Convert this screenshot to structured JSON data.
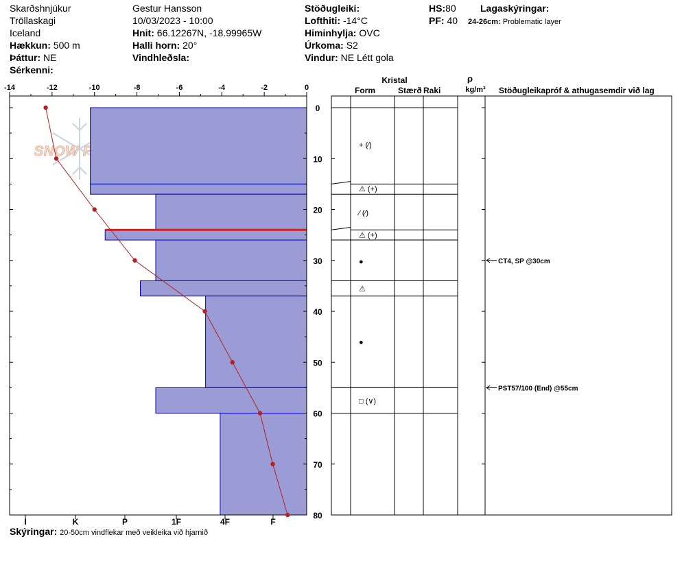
{
  "header": {
    "location": "Skarðshnjúkur",
    "region": "Tröllaskagi",
    "country": "Iceland",
    "elevation_label": "Hækkun:",
    "elevation_value": "500 m",
    "aspect_label": "Þáttur:",
    "aspect_value": "NE",
    "features_label": "Sérkenni:",
    "observer": "Gestur Hansson",
    "datetime": "10/03/2023 - 10:00",
    "coords_label": "Hnit:",
    "coords_value": "66.12267N, -18.99965W",
    "slope_label": "Halli horn:",
    "slope_value": "20°",
    "windload_label": "Vindhleðsla:",
    "stability_label": "Stöðugleiki:",
    "airtemp_label": "Lofthiti:",
    "airtemp_value": "-14°C",
    "sky_label": "Himinhylja:",
    "sky_value": "OVC",
    "precip_label": "Úrkoma:",
    "precip_value": "S2",
    "wind_label": "Vindur:",
    "wind_value": "NE Létt gola",
    "hs_label": "HS:",
    "hs_value": "80",
    "pf_label": "PF:",
    "pf_value": "40",
    "legend_label": "Lagaskýringar:",
    "problem_range": "24-26cm:",
    "problem_text": "Problematic layer"
  },
  "footer": {
    "notes_label": "Skýringar:",
    "notes_text": "20-50cm vindflekar með veikleika við hjarnið"
  },
  "watermark": "SNOW PILOT",
  "colors": {
    "layer_fill": "#9b9bd6",
    "layer_stroke": "#0000cc",
    "temp_line": "#b22222",
    "problem_line": "#cc2222"
  },
  "table_headers": {
    "kristal": "Kristal",
    "form": "Form",
    "staerd": "Stærð",
    "raki": "Raki",
    "rho": "ρ",
    "density_unit": "kg/m³",
    "comments": "Stöðugleikapróf & athugasemdir við lag"
  },
  "chart_data": {
    "type": "snow_profile",
    "depth_axis": {
      "ticks": [
        0,
        10,
        20,
        30,
        40,
        50,
        60,
        70,
        80
      ],
      "range": [
        0,
        80
      ]
    },
    "temperature_axis": {
      "ticks": [
        "-14",
        "-12",
        "-10",
        "-8",
        "-6",
        "-4",
        "-2",
        "0"
      ],
      "range": [
        -14,
        0
      ]
    },
    "hardness_axis": {
      "ticks": [
        "I",
        "K",
        "P",
        "1F",
        "4F",
        "F"
      ]
    },
    "temperature_profile": [
      {
        "depth": 0,
        "temp": -12.3
      },
      {
        "depth": 10,
        "temp": -11.8
      },
      {
        "depth": 20,
        "temp": -10.0
      },
      {
        "depth": 30,
        "temp": -8.1
      },
      {
        "depth": 40,
        "temp": -4.8
      },
      {
        "depth": 50,
        "temp": -3.5
      },
      {
        "depth": 60,
        "temp": -2.2
      },
      {
        "depth": 70,
        "temp": -1.6
      },
      {
        "depth": 80,
        "temp": -0.9
      }
    ],
    "hardness_layers": [
      {
        "top": 0,
        "bottom": 15,
        "hardness_index": 1.3
      },
      {
        "top": 15,
        "bottom": 17,
        "hardness_index": 1.3
      },
      {
        "top": 17,
        "bottom": 24,
        "hardness_index": 2.6
      },
      {
        "top": 24,
        "bottom": 26,
        "hardness_index": 1.6
      },
      {
        "top": 26,
        "bottom": 34,
        "hardness_index": 2.6
      },
      {
        "top": 34,
        "bottom": 37,
        "hardness_index": 2.3
      },
      {
        "top": 37,
        "bottom": 55,
        "hardness_index": 3.6
      },
      {
        "top": 55,
        "bottom": 60,
        "hardness_index": 2.6
      },
      {
        "top": 60,
        "bottom": 80,
        "hardness_index": 3.9
      }
    ],
    "problem_layer": {
      "top": 24,
      "bottom": 26
    },
    "layer_boundaries": [
      0,
      15,
      17,
      24,
      26,
      34,
      37,
      55,
      60
    ],
    "grain_forms": [
      {
        "depth": 7.3,
        "form": "+ (⁄)"
      },
      {
        "depth": 15.9,
        "form": "⚠ (+)"
      },
      {
        "depth": 20.6,
        "form": "⁄ (⁄)"
      },
      {
        "depth": 25.0,
        "form": "⚠ (+)"
      },
      {
        "depth": 30.2,
        "form": "●"
      },
      {
        "depth": 35.5,
        "form": "⚠"
      },
      {
        "depth": 46.0,
        "form": "●"
      },
      {
        "depth": 57.6,
        "form": "□ (∨)"
      }
    ],
    "stability_tests": [
      {
        "depth": 30,
        "text": "CT4, SP @30cm"
      },
      {
        "depth": 55,
        "text": "PST57/100 (End) @55cm"
      }
    ]
  }
}
